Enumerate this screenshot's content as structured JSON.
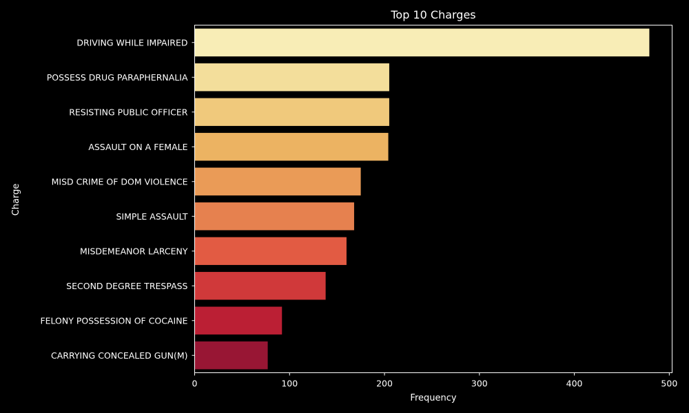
{
  "chart_data": {
    "type": "bar",
    "orientation": "horizontal",
    "title": "Top 10 Charges",
    "xlabel": "Frequency",
    "ylabel": "Charge",
    "xlim": [
      0,
      503
    ],
    "xticks": [
      0,
      100,
      200,
      300,
      400,
      500
    ],
    "grid": false,
    "categories": [
      "DRIVING WHILE IMPAIRED",
      "POSSESS DRUG PARAPHERNALIA",
      "RESISTING PUBLIC OFFICER",
      "ASSAULT ON A FEMALE",
      "MISD CRIME OF DOM VIOLENCE",
      "SIMPLE ASSAULT",
      "MISDEMEANOR LARCENY",
      "SECOND DEGREE TRESPASS",
      "FELONY POSSESSION OF COCAINE",
      "CARRYING CONCEALED GUN(M)"
    ],
    "values": [
      479,
      205,
      205,
      204,
      175,
      168,
      160,
      138,
      92,
      77
    ],
    "colors": [
      "#f8edb6",
      "#f3de9b",
      "#f0c97c",
      "#ecb362",
      "#ea9b57",
      "#e6814f",
      "#e25b43",
      "#d0393a",
      "#bb1f34",
      "#981634"
    ]
  },
  "colors": {
    "background": "#000000",
    "axis": "#ffffff",
    "text": "#ffffff"
  }
}
